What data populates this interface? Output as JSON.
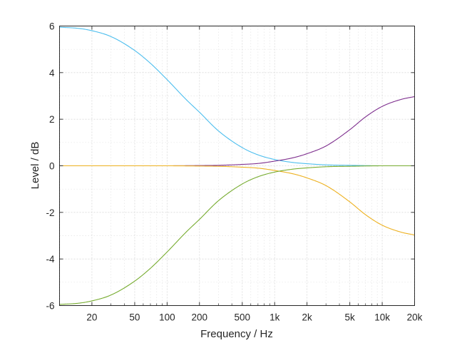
{
  "chart_data": {
    "type": "line",
    "title": "",
    "xlabel": "Frequency / Hz",
    "ylabel": "Level / dB",
    "xscale": "log",
    "xlim": [
      10,
      20000
    ],
    "ylim": [
      -6,
      6
    ],
    "grid": true,
    "legend": "none",
    "xticks": [
      20,
      50,
      100,
      200,
      500,
      1000,
      2000,
      5000,
      10000,
      20000
    ],
    "xtick_labels": [
      "20",
      "50",
      "100",
      "200",
      "500",
      "1k",
      "2k",
      "5k",
      "10k",
      "20k"
    ],
    "yticks": [
      -6,
      -4,
      -2,
      0,
      2,
      4,
      6
    ],
    "ytick_labels": [
      "-6",
      "-4",
      "-2",
      "0",
      "2",
      "4",
      "6"
    ],
    "series": [
      {
        "color": "#4DBEEE",
        "x": [
          10,
          15,
          20,
          30,
          50,
          70,
          100,
          150,
          200,
          300,
          500,
          700,
          1000,
          1500,
          2000,
          3000,
          5000,
          10000,
          20000
        ],
        "y": [
          5.95,
          5.9,
          5.8,
          5.55,
          4.95,
          4.4,
          3.7,
          2.85,
          2.3,
          1.5,
          0.78,
          0.47,
          0.27,
          0.14,
          0.09,
          0.04,
          0.02,
          0.0,
          0.0
        ]
      },
      {
        "color": "#7E2F8E",
        "x": [
          10,
          50,
          100,
          200,
          300,
          500,
          700,
          1000,
          1500,
          2000,
          3000,
          5000,
          7000,
          10000,
          15000,
          20000
        ],
        "y": [
          0,
          0,
          0.0,
          0.01,
          0.02,
          0.06,
          0.1,
          0.2,
          0.35,
          0.52,
          0.85,
          1.55,
          2.1,
          2.55,
          2.85,
          2.97
        ]
      },
      {
        "color": "#EDB120",
        "x": [
          10,
          50,
          100,
          200,
          300,
          500,
          700,
          1000,
          1500,
          2000,
          3000,
          5000,
          7000,
          10000,
          15000,
          20000
        ],
        "y": [
          0,
          0,
          0.0,
          -0.01,
          -0.02,
          -0.06,
          -0.1,
          -0.2,
          -0.35,
          -0.52,
          -0.85,
          -1.55,
          -2.1,
          -2.55,
          -2.85,
          -2.97
        ]
      },
      {
        "color": "#77AC30",
        "x": [
          10,
          15,
          20,
          30,
          50,
          70,
          100,
          150,
          200,
          300,
          500,
          700,
          1000,
          1500,
          2000,
          3000,
          5000,
          10000,
          20000
        ],
        "y": [
          -5.95,
          -5.9,
          -5.8,
          -5.55,
          -4.95,
          -4.4,
          -3.7,
          -2.85,
          -2.3,
          -1.5,
          -0.78,
          -0.47,
          -0.27,
          -0.14,
          -0.09,
          -0.04,
          -0.02,
          0.0,
          0.0
        ]
      }
    ]
  }
}
